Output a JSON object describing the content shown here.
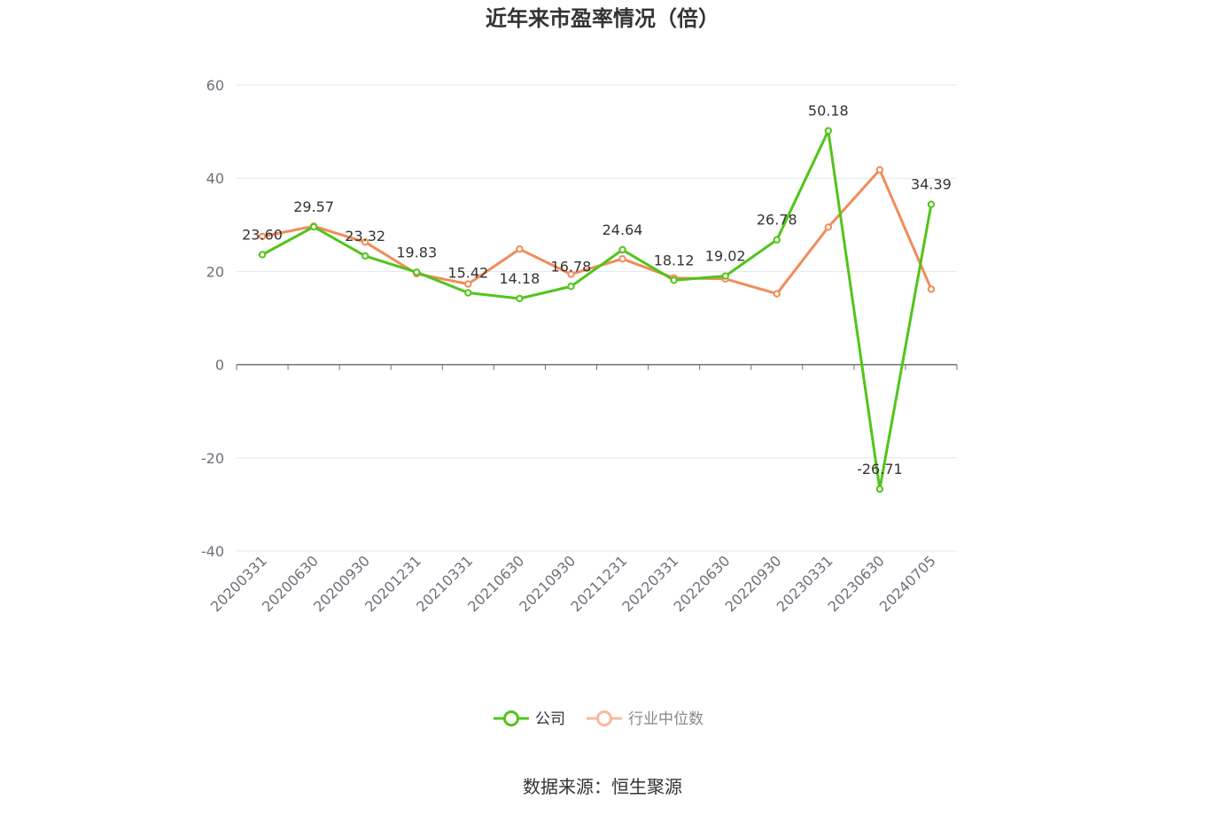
{
  "chart_data": {
    "type": "line",
    "title": "近年来市盈率情况（倍）",
    "categories": [
      "20200331",
      "20200630",
      "20200930",
      "20201231",
      "20210331",
      "20210630",
      "20210930",
      "20211231",
      "20220331",
      "20220630",
      "20220930",
      "20230331",
      "20230630",
      "20240705"
    ],
    "series": [
      {
        "name": "公司",
        "color": "#52c41a",
        "values": [
          23.6,
          29.57,
          23.32,
          19.83,
          15.42,
          14.18,
          16.78,
          24.64,
          18.12,
          19.02,
          26.78,
          50.18,
          -26.71,
          34.39
        ],
        "labels": [
          "23.60",
          "29.57",
          "23.32",
          "19.83",
          "15.42",
          "14.18",
          "16.78",
          "24.64",
          "18.12",
          "19.02",
          "26.78",
          "50.18",
          "-26.71",
          "34.39"
        ]
      },
      {
        "name": "行业中位数",
        "color": "#f08c5a",
        "values": [
          27.5,
          29.7,
          26.3,
          19.5,
          17.3,
          24.8,
          19.4,
          22.7,
          18.6,
          18.4,
          15.2,
          29.5,
          41.8,
          16.2
        ]
      }
    ],
    "ylim": [
      -40,
      60
    ],
    "yticks": [
      -40,
      -20,
      0,
      20,
      40,
      60
    ],
    "grid": true,
    "legend_position": "bottom-center",
    "source": "数据来源：恒生聚源"
  }
}
